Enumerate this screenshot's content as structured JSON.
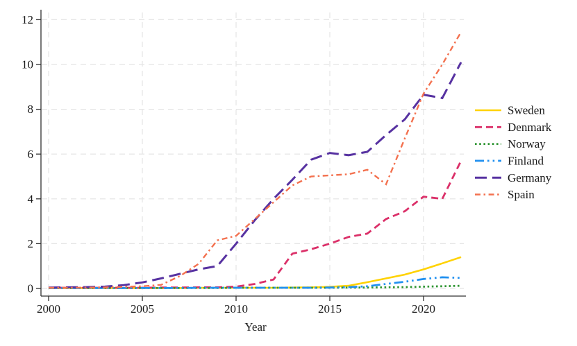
{
  "chart_data": {
    "type": "line",
    "title": "",
    "xlabel": "Year",
    "ylabel": "",
    "x_ticks": [
      2000,
      2005,
      2010,
      2015,
      2020
    ],
    "y_ticks": [
      0,
      2,
      4,
      6,
      8,
      10,
      12
    ],
    "xlim": [
      1999.5,
      2022.5
    ],
    "ylim": [
      0,
      12
    ],
    "grid": "dashed horizontal and vertical",
    "legend_position": "right",
    "x": [
      2000,
      2001,
      2002,
      2003,
      2004,
      2005,
      2006,
      2007,
      2008,
      2009,
      2010,
      2011,
      2012,
      2013,
      2014,
      2015,
      2016,
      2017,
      2018,
      2019,
      2020,
      2021,
      2022
    ],
    "series": [
      {
        "name": "Sweden",
        "color": "#FFD200",
        "line_style": "solid",
        "values": [
          0.02,
          0.02,
          0.02,
          0.02,
          0.02,
          0.02,
          0.02,
          0.02,
          0.03,
          0.03,
          0.03,
          0.03,
          0.03,
          0.04,
          0.05,
          0.07,
          0.12,
          0.28,
          0.45,
          0.62,
          0.85,
          1.12,
          1.4
        ]
      },
      {
        "name": "Denmark",
        "color": "#DB3069",
        "line_style": "dash",
        "values": [
          0.03,
          0.03,
          0.03,
          0.03,
          0.03,
          0.03,
          0.04,
          0.04,
          0.05,
          0.05,
          0.08,
          0.2,
          0.4,
          1.55,
          1.75,
          2.0,
          2.3,
          2.45,
          3.1,
          3.45,
          4.1,
          4.0,
          5.7
        ]
      },
      {
        "name": "Norway",
        "color": "#2E9532",
        "line_style": "dot",
        "values": [
          0.02,
          0.02,
          0.02,
          0.02,
          0.02,
          0.02,
          0.02,
          0.02,
          0.02,
          0.02,
          0.03,
          0.03,
          0.03,
          0.03,
          0.03,
          0.03,
          0.04,
          0.04,
          0.05,
          0.06,
          0.08,
          0.1,
          0.12
        ]
      },
      {
        "name": "Finland",
        "color": "#2090F0",
        "line_style": "dash-dot-dot",
        "values": [
          0.02,
          0.02,
          0.02,
          0.02,
          0.02,
          0.02,
          0.02,
          0.02,
          0.03,
          0.03,
          0.03,
          0.03,
          0.03,
          0.03,
          0.03,
          0.04,
          0.06,
          0.1,
          0.2,
          0.3,
          0.42,
          0.5,
          0.47
        ]
      },
      {
        "name": "Germany",
        "color": "#5732A1",
        "line_style": "long-dash",
        "values": [
          0.04,
          0.05,
          0.06,
          0.08,
          0.15,
          0.27,
          0.45,
          0.65,
          0.85,
          1.0,
          2.0,
          3.05,
          4.0,
          4.85,
          5.75,
          6.05,
          5.95,
          6.1,
          6.85,
          7.55,
          8.65,
          8.5,
          10.1
        ]
      },
      {
        "name": "Spain",
        "color": "#F3714F",
        "line_style": "dash-dot",
        "values": [
          0.03,
          0.03,
          0.04,
          0.05,
          0.07,
          0.1,
          0.16,
          0.55,
          1.1,
          2.15,
          2.35,
          3.1,
          3.85,
          4.6,
          5.0,
          5.05,
          5.1,
          5.3,
          4.65,
          6.7,
          8.7,
          10.0,
          11.45
        ]
      }
    ],
    "colors": {
      "grid": "#E4E4E4",
      "axis": "#303030",
      "text": "#1a1a1a",
      "background": "#ffffff"
    }
  }
}
